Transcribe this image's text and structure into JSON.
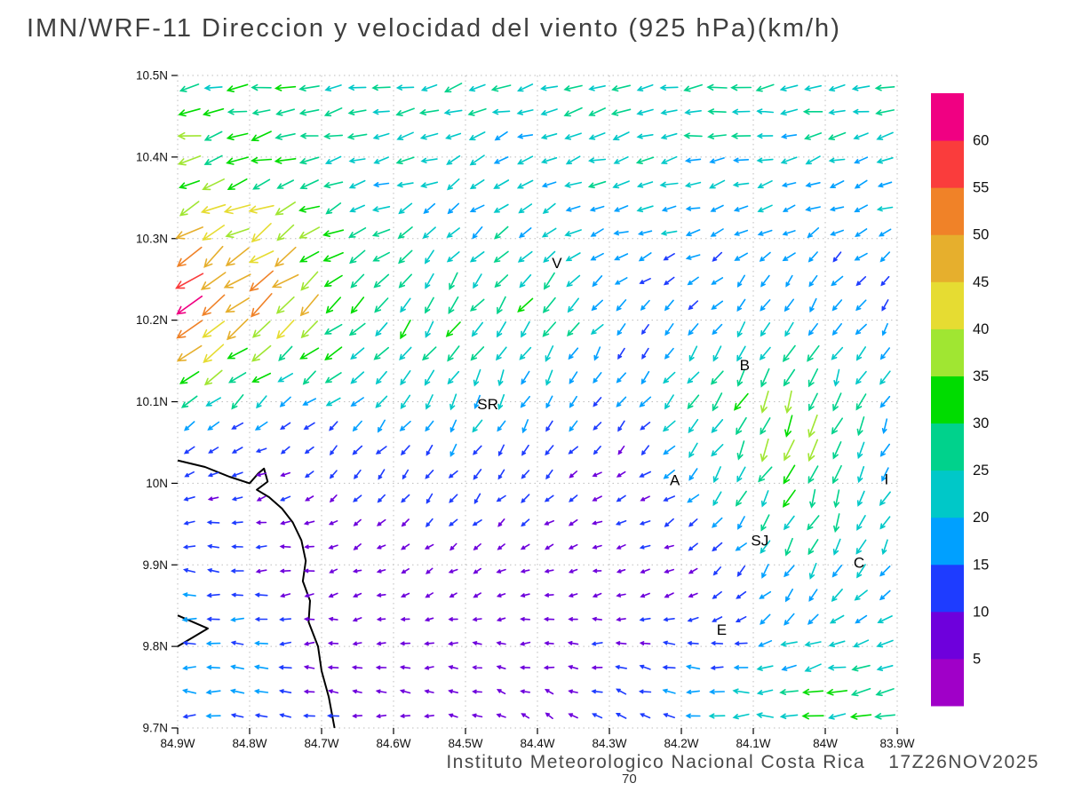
{
  "title": "IMN/WRF-11 Direccion y velocidad del viento (925 hPa)(km/h)",
  "footer": {
    "institution": "Instituto Meteorologico Nacional Costa Rica",
    "timestamp": "17Z26NOV2025",
    "figure_label": "70"
  },
  "chart_data": {
    "type": "vector-field-map",
    "model": "IMN/WRF-11",
    "variable": "Direccion y velocidad del viento",
    "level": "925 hPa",
    "units": "km/h",
    "lon_range": [
      -84.9,
      -83.9
    ],
    "lat_range": [
      9.7,
      10.5
    ],
    "x_tick_labels": [
      "84.9W",
      "84.8W",
      "84.7W",
      "84.6W",
      "84.5W",
      "84.4W",
      "84.3W",
      "84.2W",
      "84.1W",
      "84W",
      "83.9W"
    ],
    "y_tick_labels": [
      "10.5N",
      "10.4N",
      "10.3N",
      "10.2N",
      "10.1N",
      "10N",
      "9.9N",
      "9.8N",
      "9.7N"
    ],
    "grid_dotted": true,
    "colorbar": {
      "levels": [
        5,
        10,
        15,
        20,
        25,
        30,
        35,
        40,
        45,
        50,
        55,
        60
      ],
      "colors": [
        "#A000C8",
        "#6E00DC",
        "#1E3CFF",
        "#00A0FF",
        "#00C8C8",
        "#00D28C",
        "#00DC00",
        "#A0E632",
        "#E6DC32",
        "#E6AF2D",
        "#F08228",
        "#FA3C3C",
        "#F00082"
      ],
      "label_side": "right"
    },
    "city_labels": [
      {
        "label": "V",
        "lon": -84.373,
        "lat": 10.269
      },
      {
        "label": "B",
        "lon": -84.112,
        "lat": 10.144
      },
      {
        "label": "SR",
        "lon": -84.469,
        "lat": 10.096
      },
      {
        "label": "A",
        "lon": -84.209,
        "lat": 10.003
      },
      {
        "label": "SJ",
        "lon": -84.091,
        "lat": 9.929
      },
      {
        "label": "C",
        "lon": -83.953,
        "lat": 9.902
      },
      {
        "label": "E",
        "lon": -84.144,
        "lat": 9.82
      },
      {
        "label": "I",
        "lon": -83.915,
        "lat": 10.004
      }
    ],
    "coastlines": [
      [
        [
          -84.9,
          10.028
        ],
        [
          -84.862,
          10.02
        ],
        [
          -84.828,
          10.008
        ],
        [
          -84.8,
          10.0
        ],
        [
          -84.788,
          10.012
        ],
        [
          -84.78,
          10.018
        ],
        [
          -84.775,
          10.002
        ],
        [
          -84.79,
          9.992
        ],
        [
          -84.773,
          9.983
        ],
        [
          -84.755,
          9.969
        ],
        [
          -84.74,
          9.952
        ],
        [
          -84.728,
          9.93
        ],
        [
          -84.722,
          9.905
        ],
        [
          -84.726,
          9.88
        ],
        [
          -84.716,
          9.856
        ],
        [
          -84.718,
          9.83
        ],
        [
          -84.705,
          9.8
        ],
        [
          -84.7,
          9.77
        ],
        [
          -84.69,
          9.738
        ],
        [
          -84.682,
          9.7
        ]
      ],
      [
        [
          -84.9,
          9.838
        ],
        [
          -84.858,
          9.822
        ],
        [
          -84.9,
          9.8
        ]
      ]
    ],
    "vector_grid": {
      "nx": 30,
      "ny": 27
    },
    "wind_features": [
      {
        "name": "background-easterly",
        "lon": -84.4,
        "lat": 10.1,
        "sx": 3.0,
        "sy": 3.0,
        "u": -6,
        "v": -1,
        "w": 0.25
      },
      {
        "name": "top-band-easterly",
        "lon": -84.4,
        "lat": 10.52,
        "sx": 1.2,
        "sy": 0.09,
        "u": -32,
        "v": -3,
        "w": 1.2
      },
      {
        "name": "band-10p40",
        "lon": -84.55,
        "lat": 10.4,
        "sx": 0.5,
        "sy": 0.07,
        "u": -24,
        "v": -6,
        "w": 1.0
      },
      {
        "name": "band-10p33",
        "lon": -84.3,
        "lat": 10.33,
        "sx": 0.4,
        "sy": 0.06,
        "u": -22,
        "v": -5,
        "w": 0.9
      },
      {
        "name": "left-edge-jet",
        "lon": -84.88,
        "lat": 10.24,
        "sx": 0.1,
        "sy": 0.09,
        "u": -52,
        "v": -44,
        "w": 1.8
      },
      {
        "name": "jet-extension",
        "lon": -84.72,
        "lat": 10.17,
        "sx": 0.16,
        "sy": 0.09,
        "u": -32,
        "v": -26,
        "w": 1.2
      },
      {
        "name": "left-upper-orange",
        "lon": -84.88,
        "lat": 10.38,
        "sx": 0.07,
        "sy": 0.06,
        "u": -40,
        "v": -4,
        "w": 1.2
      },
      {
        "name": "mid-yellow-downflow",
        "lon": -84.55,
        "lat": 10.05,
        "sx": 0.14,
        "sy": 0.09,
        "u": -22,
        "v": -30,
        "w": 1.0
      },
      {
        "name": "central-northerly",
        "lon": -84.47,
        "lat": 10.2,
        "sx": 0.09,
        "sy": 0.15,
        "u": -4,
        "v": -30,
        "w": 1.2
      },
      {
        "name": "center-orange-patch",
        "lon": -84.42,
        "lat": 10.23,
        "sx": 0.06,
        "sy": 0.05,
        "u": -35,
        "v": -18,
        "w": 0.9
      },
      {
        "name": "calm-zone-west",
        "lon": -84.72,
        "lat": 10.04,
        "sx": 0.18,
        "sy": 0.07,
        "u": -3,
        "v": -1,
        "w": 2.0
      },
      {
        "name": "calm-zone-central",
        "lon": -84.45,
        "lat": 9.9,
        "sx": 0.28,
        "sy": 0.12,
        "u": -3,
        "v": -0.5,
        "w": 2.5
      },
      {
        "name": "coast-cyan-flow",
        "lon": -84.87,
        "lat": 9.84,
        "sx": 0.1,
        "sy": 0.12,
        "u": -22,
        "v": 2,
        "w": 1.8
      },
      {
        "name": "weak-patch-east",
        "lon": -84.2,
        "lat": 9.87,
        "sx": 0.12,
        "sy": 0.07,
        "u": -4,
        "v": -2,
        "w": 1.5
      },
      {
        "name": "blue-patch-northeast",
        "lon": -84.08,
        "lat": 10.22,
        "sx": 0.12,
        "sy": 0.08,
        "u": -5,
        "v": -10,
        "w": 1.3
      },
      {
        "name": "right-cyan-upper",
        "lon": -83.95,
        "lat": 10.28,
        "sx": 0.12,
        "sy": 0.12,
        "u": -16,
        "v": -4,
        "w": 1.0
      },
      {
        "name": "b-sj-yellow-band",
        "lon": -84.13,
        "lat": 10.05,
        "sx": 0.08,
        "sy": 0.1,
        "u": -25,
        "v": -35,
        "w": 1.2
      },
      {
        "name": "right-yellow-streak",
        "lon": -84.04,
        "lat": 10.02,
        "sx": 0.06,
        "sy": 0.13,
        "u": -15,
        "v": -48,
        "w": 1.6
      },
      {
        "name": "right-edge-green",
        "lon": -83.93,
        "lat": 10.02,
        "sx": 0.1,
        "sy": 0.18,
        "u": -8,
        "v": -28,
        "w": 1.0
      },
      {
        "name": "row-9p95-green",
        "lon": -84.25,
        "lat": 9.95,
        "sx": 0.18,
        "sy": 0.045,
        "u": -20,
        "v": -3,
        "w": 1.0
      },
      {
        "name": "southeast-green-band",
        "lon": -84.05,
        "lat": 9.76,
        "sx": 0.3,
        "sy": 0.07,
        "u": -34,
        "v": 1,
        "w": 1.5
      },
      {
        "name": "southeast-yellow",
        "lon": -84.0,
        "lat": 9.72,
        "sx": 0.08,
        "sy": 0.05,
        "u": -38,
        "v": 2,
        "w": 1.0
      },
      {
        "name": "bottom-center-upflow",
        "lon": -84.33,
        "lat": 9.73,
        "sx": 0.12,
        "sy": 0.05,
        "u": 5,
        "v": 9,
        "w": 1.3
      }
    ]
  }
}
